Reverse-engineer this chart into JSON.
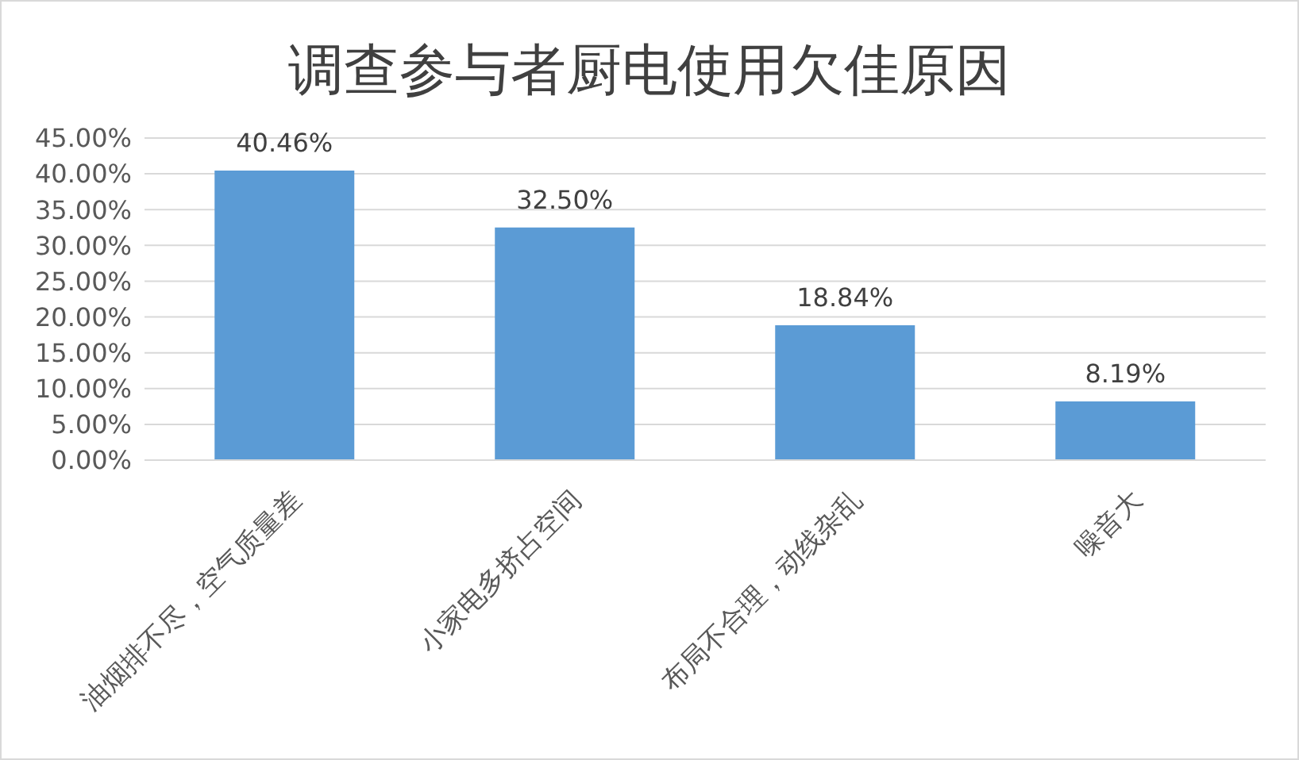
{
  "chart_data": {
    "type": "bar",
    "title": "调查参与者厨电使用欠佳原因",
    "categories": [
      "油烟排不尽，空气质量差",
      "小家电多挤占空间",
      "布局不合理，动线杂乱",
      "噪音大"
    ],
    "values": [
      40.46,
      32.5,
      18.84,
      8.19
    ],
    "value_labels": [
      "40.46%",
      "32.50%",
      "18.84%",
      "8.19%"
    ],
    "color": "#5b9bd5",
    "ylim": [
      0,
      45
    ],
    "yticks": [
      {
        "value": 0,
        "label": "0.00%"
      },
      {
        "value": 5,
        "label": "5.00%"
      },
      {
        "value": 10,
        "label": "10.00%"
      },
      {
        "value": 15,
        "label": "15.00%"
      },
      {
        "value": 20,
        "label": "20.00%"
      },
      {
        "value": 25,
        "label": "25.00%"
      },
      {
        "value": 30,
        "label": "30.00%"
      },
      {
        "value": 35,
        "label": "35.00%"
      },
      {
        "value": 40,
        "label": "40.00%"
      },
      {
        "value": 45,
        "label": "45.00%"
      }
    ],
    "grid": "y"
  }
}
